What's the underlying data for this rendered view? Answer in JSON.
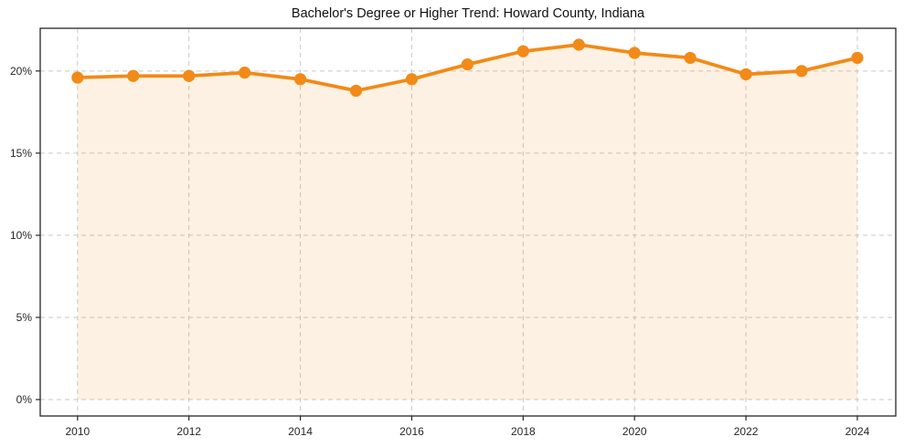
{
  "chart_data": {
    "type": "line",
    "title": "Bachelor's Degree or Higher Trend: Howard County, Indiana",
    "x": [
      2010,
      2011,
      2012,
      2013,
      2014,
      2015,
      2016,
      2017,
      2018,
      2019,
      2020,
      2021,
      2022,
      2023,
      2024
    ],
    "values": [
      19.6,
      19.7,
      19.7,
      19.9,
      19.5,
      18.8,
      19.5,
      20.4,
      21.2,
      21.6,
      21.1,
      20.8,
      19.8,
      20.0,
      20.8
    ],
    "unit": "%",
    "xlabel": "",
    "ylabel": "",
    "xlim": [
      2009.33,
      2024.69
    ],
    "ylim": [
      -1.0,
      22.6
    ],
    "x_ticks": [
      2010,
      2012,
      2014,
      2016,
      2018,
      2020,
      2022,
      2024
    ],
    "x_tick_labels": [
      "2010",
      "2012",
      "2014",
      "2016",
      "2018",
      "2020",
      "2022",
      "2024"
    ],
    "y_ticks": [
      0,
      5,
      10,
      15,
      20
    ],
    "y_tick_labels": [
      "0%",
      "5%",
      "10%",
      "15%",
      "20%"
    ],
    "grid": true,
    "grid_style": "dashed",
    "legend_position": "none",
    "area_fill_baseline": 0,
    "line_color": "#f28a17",
    "fill_color": "#f28a17",
    "fill_opacity": 0.12,
    "marker": "circle",
    "marker_radius": 6.6,
    "line_width": 3.8,
    "grid_color": "#c9c9c9",
    "axis_color": "#262626",
    "tick_label_color": "#262626",
    "title_color": "#111111",
    "background_color": "#ffffff"
  }
}
